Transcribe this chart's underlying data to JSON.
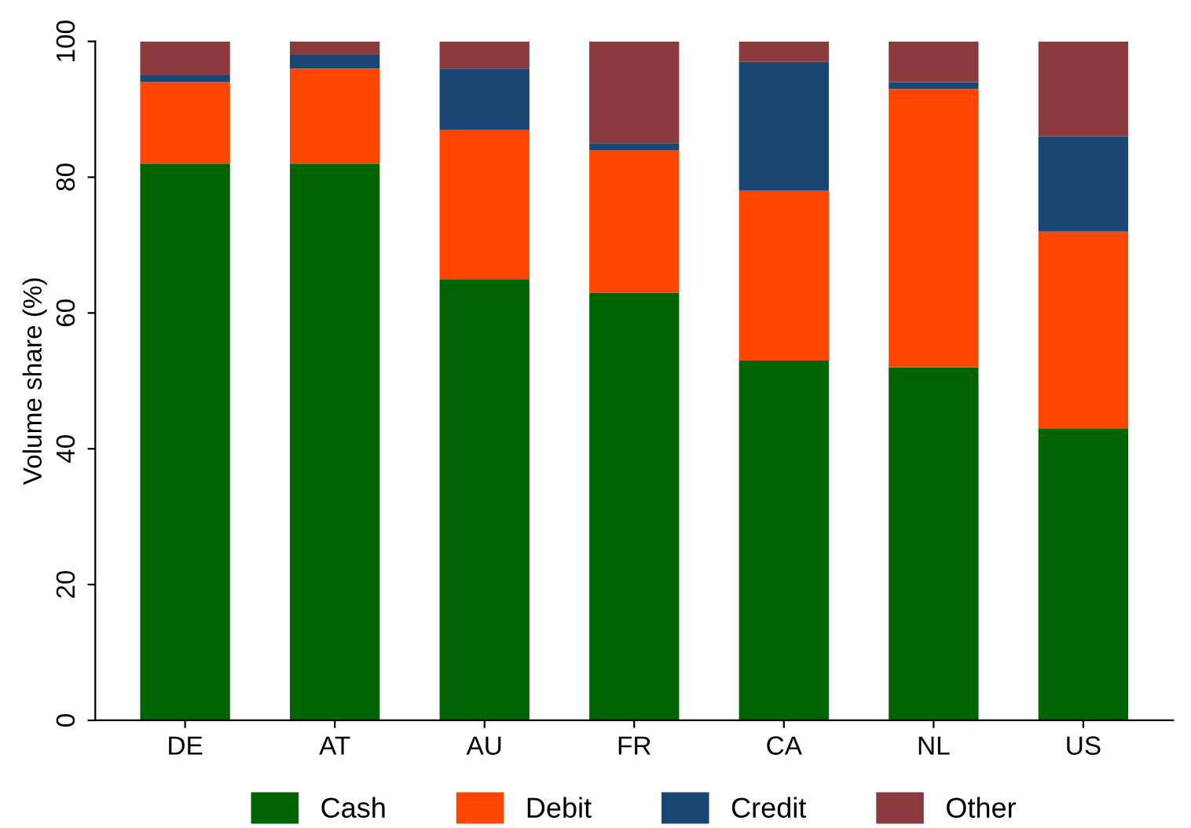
{
  "chart_data": {
    "type": "bar",
    "stacked": true,
    "ylabel": "Volume share (%)",
    "categories": [
      "DE",
      "AT",
      "AU",
      "FR",
      "CA",
      "NL",
      "US"
    ],
    "series": [
      {
        "name": "Cash",
        "color": "#006400",
        "values": [
          82,
          82,
          65,
          63,
          53,
          52,
          43
        ]
      },
      {
        "name": "Debit",
        "color": "#ff4500",
        "values": [
          12,
          14,
          22,
          21,
          25,
          41,
          29
        ]
      },
      {
        "name": "Credit",
        "color": "#1a4674",
        "values": [
          1,
          2,
          9,
          1,
          19,
          1,
          14
        ]
      },
      {
        "name": "Other",
        "color": "#8b3a3e",
        "values": [
          5,
          2,
          4,
          15,
          3,
          6,
          14
        ]
      }
    ],
    "ylim": [
      0,
      100
    ],
    "yticks": [
      0,
      20,
      40,
      60,
      80,
      100
    ],
    "grid": false,
    "legend": "bottom"
  }
}
